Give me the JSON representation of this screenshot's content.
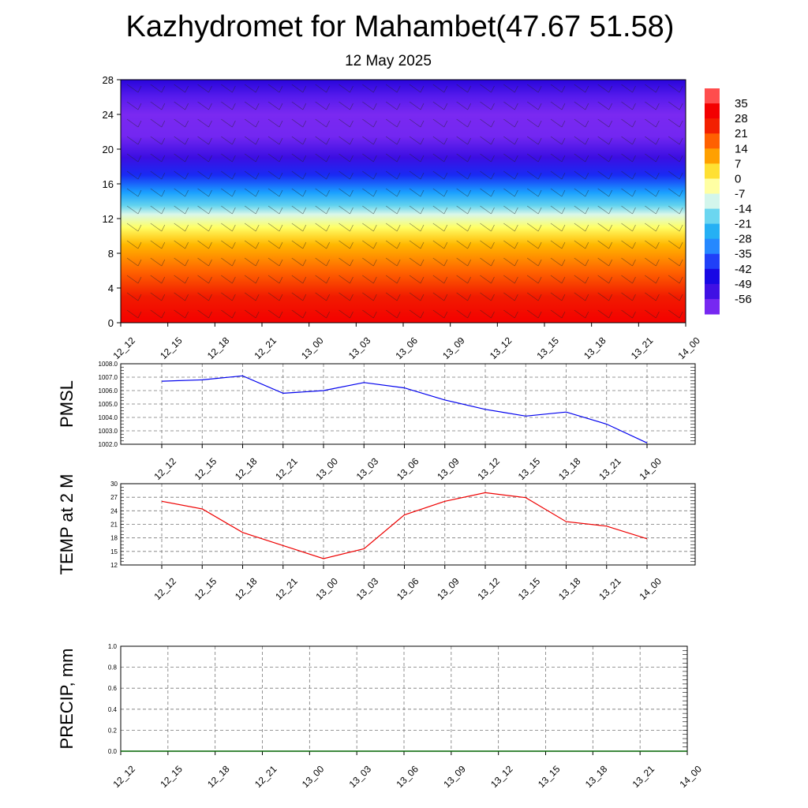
{
  "header": {
    "title": "Kazhydromet for Mahambet(47.67 51.58)",
    "subtitle": "12 May 2025"
  },
  "colors": {
    "pmsl_line": "#0000ee",
    "temp_line": "#ee0000",
    "precip_line": "#006400",
    "colorbar_stops": [
      "#ff9a9a",
      "#ff0000",
      "#e60000",
      "#ff4000",
      "#ff8000",
      "#ffc000",
      "#ffff66",
      "#ffffe0",
      "#a6ecf7",
      "#30c0e8",
      "#1aa0ff",
      "#3070ff",
      "#1010f0",
      "#2000d8",
      "#6020f0",
      "#8d30f2"
    ]
  },
  "chart_data": [
    {
      "type": "heatmap",
      "name": "vertical temperature profile with wind barbs",
      "x_labels": [
        "12_12",
        "12_15",
        "12_18",
        "12_21",
        "13_00",
        "13_03",
        "13_06",
        "13_09",
        "13_12",
        "13_15",
        "13_18",
        "13_21",
        "14_00"
      ],
      "y_ticks": [
        0,
        4,
        8,
        12,
        16,
        20,
        24,
        28
      ],
      "ylim": [
        0,
        28
      ],
      "colorbar_labels": [
        "35",
        "28",
        "21",
        "14",
        "7",
        "0",
        "-7",
        "-14",
        "-21",
        "-28",
        "-35",
        "-42",
        "-49",
        "-56"
      ],
      "colorbar_range": [
        -63,
        42
      ],
      "profile": [
        {
          "y": 0,
          "t": 32
        },
        {
          "y": 3,
          "t": 25
        },
        {
          "y": 6,
          "t": 17
        },
        {
          "y": 9,
          "t": 8
        },
        {
          "y": 11,
          "t": 0
        },
        {
          "y": 12.5,
          "t": -10
        },
        {
          "y": 13.5,
          "t": -18
        },
        {
          "y": 15,
          "t": -28
        },
        {
          "y": 17,
          "t": -40
        },
        {
          "y": 19,
          "t": -52
        },
        {
          "y": 21.5,
          "t": -59
        },
        {
          "y": 24,
          "t": -60
        },
        {
          "y": 26,
          "t": -55
        },
        {
          "y": 28,
          "t": -50
        }
      ]
    },
    {
      "type": "line",
      "ylabel": "PMSL",
      "x": [
        "12_12",
        "12_15",
        "12_18",
        "12_21",
        "13_00",
        "13_03",
        "13_06",
        "13_09",
        "13_12",
        "13_15",
        "13_18",
        "13_21",
        "14_00"
      ],
      "series": [
        {
          "values": [
            1006.7,
            1006.8,
            1007.1,
            1005.8,
            1006.0,
            1006.6,
            1006.2,
            1005.3,
            1004.6,
            1004.1,
            1004.4,
            1003.5,
            1002.1
          ]
        }
      ],
      "ylim": [
        1002.0,
        1008.0
      ],
      "y_tick_labels": [
        "1002.0",
        "1003.0",
        "1004.0",
        "1005.0",
        "1006.0",
        "1007.0",
        "1008.0"
      ]
    },
    {
      "type": "line",
      "ylabel": "TEMP at 2 M",
      "x": [
        "12_12",
        "12_15",
        "12_18",
        "12_21",
        "13_00",
        "13_03",
        "13_06",
        "13_09",
        "13_12",
        "13_15",
        "13_18",
        "13_21",
        "14_00"
      ],
      "series": [
        {
          "values": [
            26.1,
            24.4,
            19.2,
            16.3,
            13.4,
            15.6,
            23.1,
            26.1,
            28.0,
            26.9,
            21.6,
            20.6,
            17.8
          ]
        }
      ],
      "ylim": [
        12,
        30
      ],
      "y_tick_labels": [
        "12",
        "15",
        "18",
        "21",
        "24",
        "27",
        "30"
      ]
    },
    {
      "type": "line",
      "ylabel": "PRECIP, mm",
      "x": [
        "12_12",
        "12_15",
        "12_18",
        "12_21",
        "13_00",
        "13_03",
        "13_06",
        "13_09",
        "13_12",
        "13_15",
        "13_18",
        "13_21",
        "14_00"
      ],
      "series": [
        {
          "values": [
            0,
            0,
            0,
            0,
            0,
            0,
            0,
            0,
            0,
            0,
            0,
            0,
            0
          ]
        }
      ],
      "ylim": [
        0.0,
        1.0
      ],
      "y_tick_labels": [
        "0.0",
        "0.2",
        "0.4",
        "0.6",
        "0.8",
        "1.0"
      ]
    }
  ]
}
